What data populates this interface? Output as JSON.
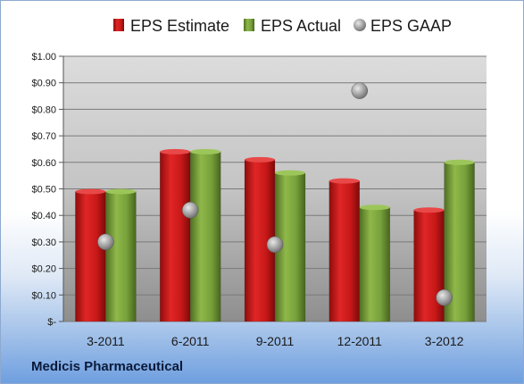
{
  "chart_data": {
    "type": "bar",
    "categories": [
      "3-2011",
      "6-2011",
      "9-2011",
      "12-2011",
      "3-2012"
    ],
    "series": [
      {
        "name": "EPS Estimate",
        "kind": "bar",
        "color": "#cc1a1a",
        "values": [
          0.49,
          0.64,
          0.61,
          0.53,
          0.42
        ]
      },
      {
        "name": "EPS Actual",
        "kind": "bar",
        "color": "#7aa23c",
        "values": [
          0.49,
          0.64,
          0.56,
          0.43,
          0.6
        ]
      },
      {
        "name": "EPS GAAP",
        "kind": "scatter",
        "color": "#9a9a9a",
        "values": [
          0.3,
          0.42,
          0.29,
          0.87,
          0.09
        ]
      }
    ],
    "yticks": [
      "$-",
      "$0.10",
      "$0.20",
      "$0.30",
      "$0.40",
      "$0.50",
      "$0.60",
      "$0.70",
      "$0.80",
      "$0.90",
      "$1.00"
    ],
    "ylim": [
      0,
      1.0
    ],
    "grid": true,
    "legend_position": "top"
  },
  "footer": {
    "company": "Medicis Pharmaceutical"
  }
}
